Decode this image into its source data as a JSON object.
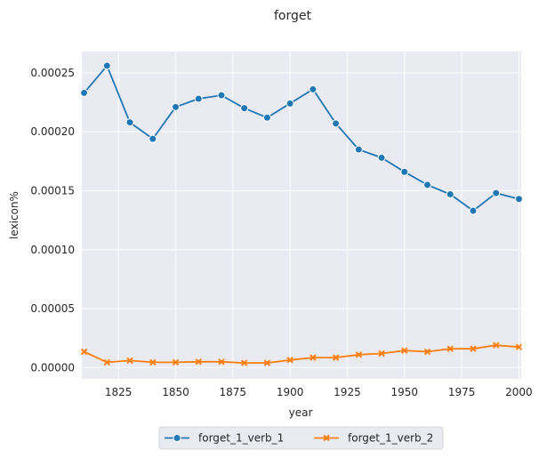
{
  "chart_data": {
    "type": "line",
    "title": "forget",
    "xlabel": "year",
    "ylabel": "lexicon%",
    "xlim": [
      1809,
      2001
    ],
    "ylim": [
      -9.5e-06,
      0.000268
    ],
    "xticks": [
      1825,
      1850,
      1875,
      1900,
      1925,
      1950,
      1975,
      2000
    ],
    "xtick_labels": [
      "1825",
      "1850",
      "1875",
      "1900",
      "1925",
      "1950",
      "1975",
      "2000"
    ],
    "yticks": [
      0.0,
      5e-05,
      0.0001,
      0.00015,
      0.0002,
      0.00025
    ],
    "ytick_labels": [
      "0.00000",
      "0.00005",
      "0.00010",
      "0.00015",
      "0.00020",
      "0.00025"
    ],
    "grid": true,
    "legend_position": "bottom-center",
    "x": [
      1810,
      1820,
      1830,
      1840,
      1850,
      1860,
      1870,
      1880,
      1890,
      1900,
      1910,
      1920,
      1930,
      1940,
      1950,
      1960,
      1970,
      1980,
      1990,
      2000
    ],
    "series": [
      {
        "name": "forget_1_verb_1",
        "color": "#1f77b4",
        "marker": "circle",
        "values": [
          0.000233,
          0.000256,
          0.000208,
          0.000194,
          0.000221,
          0.000228,
          0.000231,
          0.00022,
          0.000212,
          0.000224,
          0.000236,
          0.000207,
          0.000185,
          0.000178,
          0.000166,
          0.000155,
          0.000147,
          0.000133,
          0.000148,
          0.000143
        ]
      },
      {
        "name": "forget_1_verb_2",
        "color": "#ff7f0e",
        "marker": "x",
        "values": [
          1.35e-05,
          4.5e-06,
          6e-06,
          4.5e-06,
          4.5e-06,
          5e-06,
          5e-06,
          4e-06,
          4e-06,
          6.5e-06,
          8.5e-06,
          8.5e-06,
          1.1e-05,
          1.2e-05,
          1.45e-05,
          1.35e-05,
          1.6e-05,
          1.6e-05,
          1.9e-05,
          1.75e-05
        ]
      }
    ]
  },
  "colors": {
    "plot_background": "#eaeaf2",
    "grid": "#ffffff",
    "text": "#262626"
  }
}
